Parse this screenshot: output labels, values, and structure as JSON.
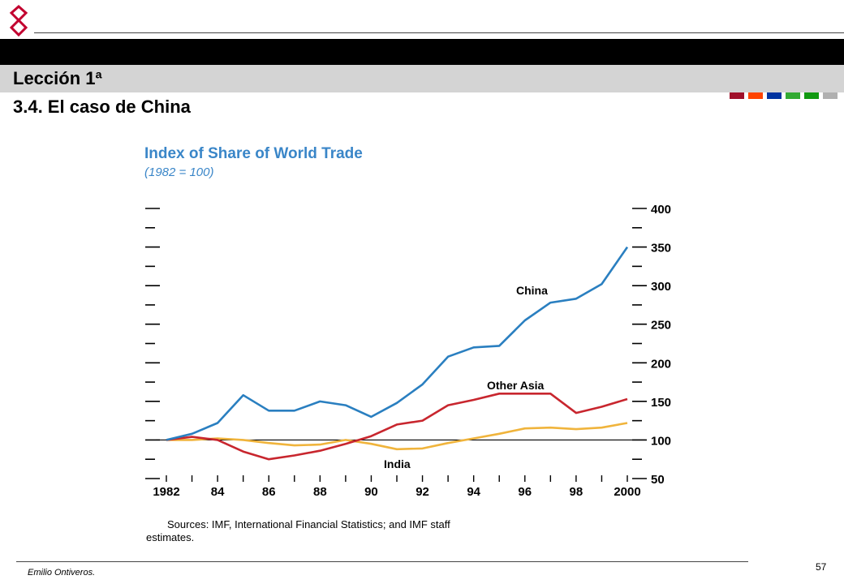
{
  "header": {
    "lesson_title": "Lección 1ª",
    "section_title": "3.4. El caso de China",
    "logo_color": "#c2002f",
    "squares": [
      "#a0102a",
      "#ff4400",
      "#0033a0",
      "#33aa33",
      "#119911",
      "#b0b0b0"
    ]
  },
  "footer": {
    "author": "Emilio Ontiveros.",
    "page_number": "57"
  },
  "chart_data": {
    "type": "line",
    "title": "Index of Share of World Trade",
    "subtitle": "(1982 = 100)",
    "x_tick_labels": [
      "1982",
      "84",
      "86",
      "88",
      "90",
      "92",
      "94",
      "96",
      "98",
      "2000"
    ],
    "y_tick_labels": [
      "50",
      "100",
      "150",
      "200",
      "250",
      "300",
      "350",
      "400"
    ],
    "ylim": [
      50,
      400
    ],
    "xlim": [
      1982,
      2000
    ],
    "baseline": 100,
    "series": [
      {
        "name": "China",
        "color": "#2a7fc0",
        "x": [
          1982,
          1983,
          1984,
          1985,
          1986,
          1987,
          1988,
          1989,
          1990,
          1991,
          1992,
          1993,
          1994,
          1995,
          1996,
          1997,
          1998,
          1999,
          2000
        ],
        "values": [
          100,
          108,
          122,
          158,
          138,
          138,
          150,
          145,
          130,
          148,
          172,
          208,
          220,
          222,
          255,
          278,
          283,
          302,
          350
        ]
      },
      {
        "name": "Other Asia",
        "color": "#c8262e",
        "x": [
          1982,
          1983,
          1984,
          1985,
          1986,
          1987,
          1988,
          1989,
          1990,
          1991,
          1992,
          1993,
          1994,
          1995,
          1996,
          1997,
          1998,
          1999,
          2000
        ],
        "values": [
          100,
          104,
          100,
          85,
          75,
          80,
          86,
          95,
          105,
          120,
          125,
          145,
          152,
          160,
          160,
          160,
          135,
          143,
          153
        ]
      },
      {
        "name": "India",
        "color": "#f0b43c",
        "x": [
          1982,
          1983,
          1984,
          1985,
          1986,
          1987,
          1988,
          1989,
          1990,
          1991,
          1992,
          1993,
          1994,
          1995,
          1996,
          1997,
          1998,
          1999,
          2000
        ],
        "values": [
          100,
          100,
          102,
          100,
          96,
          93,
          94,
          100,
          95,
          88,
          89,
          96,
          102,
          108,
          115,
          116,
          114,
          116,
          122
        ]
      }
    ],
    "source_line1": "Sources: IMF, International Financial Statistics; and IMF staff",
    "source_line2": "estimates."
  }
}
